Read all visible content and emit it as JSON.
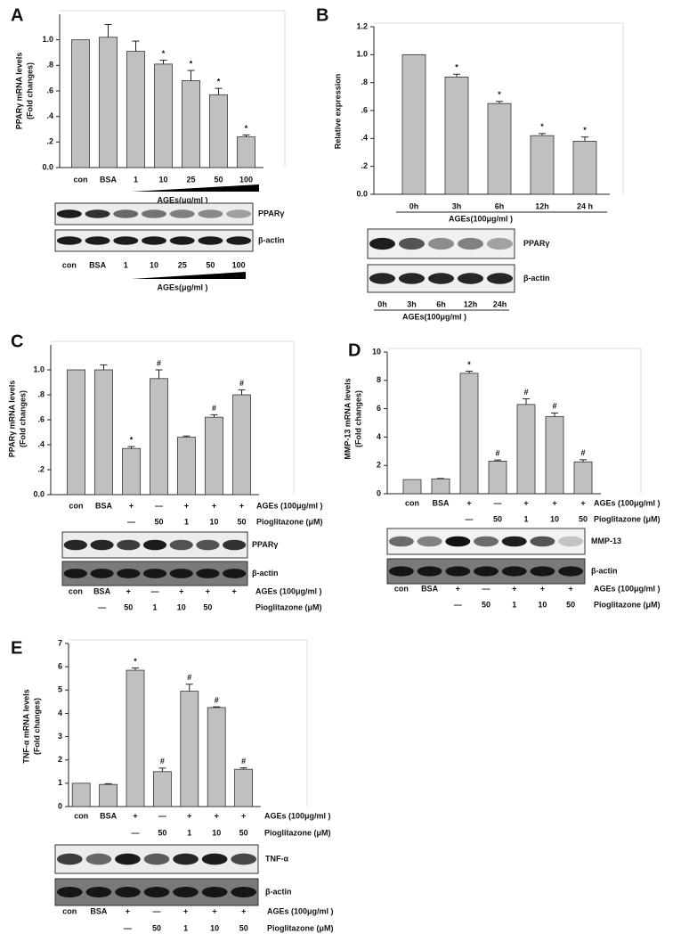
{
  "chart_data": [
    {
      "type": "bar",
      "label": "A",
      "ylabel": [
        "PPARγ mRNA levels",
        "(Fold changes)"
      ],
      "categories": [
        "con",
        "BSA",
        "1",
        "10",
        "25",
        "50",
        "100"
      ],
      "values": [
        1.0,
        1.02,
        0.91,
        0.81,
        0.68,
        0.57,
        0.24
      ],
      "errors": [
        null,
        0.1,
        0.08,
        0.03,
        0.08,
        0.05,
        0.015
      ],
      "markers": [
        null,
        null,
        null,
        "*",
        "*",
        "*",
        "*"
      ],
      "color": "#c0c0c0",
      "ylim": [
        0,
        1.2
      ],
      "yticks": [
        {
          "value": 0,
          "label": "0.0"
        },
        {
          "value": 0.2,
          "label": ".2"
        },
        {
          "value": 0.4,
          "label": ".4"
        },
        {
          "value": 0.6,
          "label": ".6"
        },
        {
          "value": 0.8,
          "label": ".8"
        },
        {
          "value": 1,
          "label": "1.0"
        }
      ],
      "xlabel": "AGEs(μg/ml )",
      "blot": {
        "rows": [
          "PPARγ",
          "β-actin"
        ],
        "lanes": [
          "con",
          "BSA",
          "1",
          "10",
          "25",
          "50",
          "100"
        ],
        "xlabel": "AGEs(μg/ml )"
      }
    },
    {
      "type": "bar",
      "label": "B",
      "ylabel": [
        "Relative expression"
      ],
      "categories": [
        "0h",
        "3h",
        "6h",
        "12h",
        "24 h"
      ],
      "values": [
        1.0,
        0.84,
        0.65,
        0.42,
        0.38
      ],
      "errors": [
        null,
        0.02,
        0.015,
        0.015,
        0.03
      ],
      "markers": [
        null,
        "*",
        "*",
        "*",
        "*"
      ],
      "color": "#c0c0c0",
      "ylim": [
        0,
        1.2
      ],
      "yticks": [
        {
          "value": 0,
          "label": "0.0"
        },
        {
          "value": 0.2,
          "label": ".2"
        },
        {
          "value": 0.4,
          "label": ".4"
        },
        {
          "value": 0.6,
          "label": ".6"
        },
        {
          "value": 0.8,
          "label": ".8"
        },
        {
          "value": 1,
          "label": "1.0"
        },
        {
          "value": 1.2,
          "label": "1.2"
        }
      ],
      "xlabel": "AGEs(100μg/ml )",
      "blot": {
        "rows": [
          "PPARγ",
          "β-actin"
        ],
        "lanes": [
          "0h",
          "3h",
          "6h",
          "12h",
          "24h"
        ],
        "xlabel": "AGEs(100μg/ml )"
      }
    },
    {
      "type": "bar",
      "label": "C",
      "ylabel": [
        "PPARγ mRNA levels",
        "(Fold changes)"
      ],
      "categories": [
        "con",
        "BSA",
        "+",
        "—",
        "+",
        "+",
        "+"
      ],
      "categories2": [
        null,
        null,
        "—",
        "50",
        "1",
        "10",
        "50"
      ],
      "values": [
        1.0,
        1.0,
        0.37,
        0.93,
        0.46,
        0.62,
        0.8
      ],
      "errors": [
        null,
        0.04,
        0.015,
        0.07,
        0.01,
        0.02,
        0.04
      ],
      "markers": [
        null,
        null,
        "*",
        "#",
        null,
        "#",
        "#"
      ],
      "color": "#c0c0c0",
      "ylim": [
        0,
        1.2
      ],
      "yticks": [
        {
          "value": 0,
          "label": "0.0"
        },
        {
          "value": 0.2,
          "label": ".2"
        },
        {
          "value": 0.4,
          "label": ".4"
        },
        {
          "value": 0.6,
          "label": ".6"
        },
        {
          "value": 0.8,
          "label": ".8"
        },
        {
          "value": 1,
          "label": "1.0"
        }
      ],
      "xlabel": "AGEs (100μg/ml )",
      "xlabel2": "Pioglitazone (μM)",
      "blot": {
        "rows": [
          "PPARγ",
          "β-actin"
        ],
        "lanes": [
          "con",
          "BSA",
          "+",
          "—",
          "+",
          "+",
          "+"
        ],
        "lanes2": [
          null,
          "—",
          "50",
          "1",
          "10",
          "50",
          null
        ],
        "xlabel": "AGEs (100μg/ml )",
        "xlabel2": "Pioglitazone (μM)"
      }
    },
    {
      "type": "bar",
      "label": "D",
      "ylabel": [
        "MMP-13 mRNA levels",
        "(Fold changes)"
      ],
      "categories": [
        "con",
        "BSA",
        "+",
        "—",
        "+",
        "+",
        "+"
      ],
      "categories2": [
        null,
        null,
        "—",
        "50",
        "1",
        "10",
        "50"
      ],
      "values": [
        1.0,
        1.05,
        8.5,
        2.3,
        6.3,
        5.45,
        2.25
      ],
      "errors": [
        null,
        0.03,
        0.15,
        0.08,
        0.4,
        0.25,
        0.15
      ],
      "markers": [
        null,
        null,
        "*",
        "#",
        "#",
        "#",
        "#"
      ],
      "color": "#c0c0c0",
      "ylim": [
        0,
        10
      ],
      "yticks": [
        0,
        2,
        4,
        6,
        8,
        10
      ],
      "xlabel": "AGEs (100μg/ml )",
      "xlabel2": "Pioglitazone (μM)",
      "blot": {
        "rows": [
          "MMP-13",
          "β-actin"
        ],
        "lanes": [
          "con",
          "BSA",
          "+",
          "—",
          "+",
          "+",
          "+"
        ],
        "lanes2": [
          null,
          null,
          "—",
          "50",
          "1",
          "10",
          "50"
        ],
        "xlabel": "AGEs (100μg/ml )",
        "xlabel2": "Pioglitazone (μM)"
      }
    },
    {
      "type": "bar",
      "label": "E",
      "ylabel": [
        "TNF-α mRNA levels",
        "(Fold changes)"
      ],
      "categories": [
        "con",
        "BSA",
        "+",
        "—",
        "+",
        "+",
        "+"
      ],
      "categories2": [
        null,
        null,
        "—",
        "50",
        "1",
        "10",
        "50"
      ],
      "values": [
        1.0,
        0.95,
        5.85,
        1.5,
        4.95,
        4.25,
        1.6
      ],
      "errors": [
        null,
        0.03,
        0.1,
        0.15,
        0.3,
        0.03,
        0.06
      ],
      "markers": [
        null,
        null,
        "*",
        "#",
        "#",
        "#",
        "#"
      ],
      "color": "#c0c0c0",
      "ylim": [
        0,
        7
      ],
      "yticks": [
        0,
        1,
        2,
        3,
        4,
        5,
        6,
        7
      ],
      "xlabel": "AGEs (100μg/ml )",
      "xlabel2": "Pioglitazone (μM)",
      "blot": {
        "rows": [
          "TNF-α",
          "β-actin"
        ],
        "lanes": [
          "con",
          "BSA",
          "+",
          "—",
          "+",
          "+",
          "+"
        ],
        "lanes2": [
          null,
          null,
          "—",
          "50",
          "1",
          "10",
          "50"
        ],
        "xlabel": "AGEs (100μg/ml )",
        "xlabel2": "Pioglitazone (μM)"
      }
    }
  ]
}
